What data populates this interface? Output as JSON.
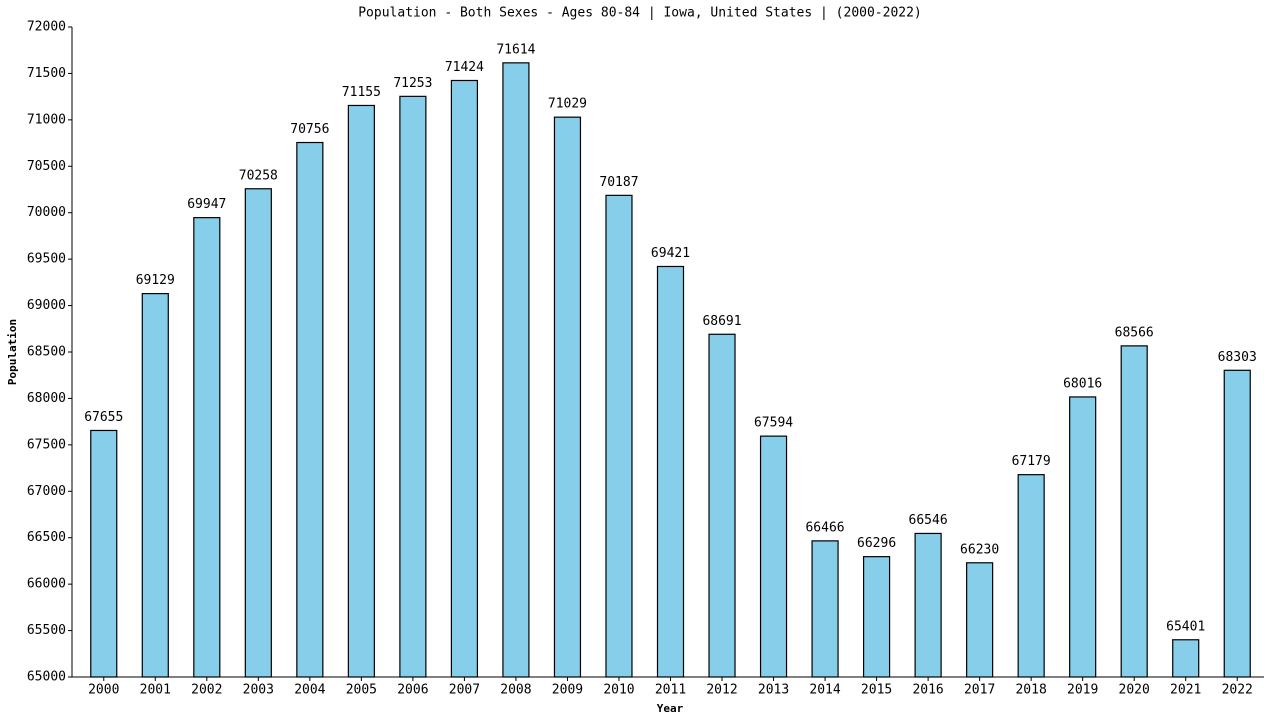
{
  "chart_data": {
    "type": "bar",
    "title": "Population - Both Sexes - Ages 80-84 | Iowa, United States |  (2000-2022)",
    "x_label": "Year",
    "y_label": "Population",
    "categories": [
      "2000",
      "2001",
      "2002",
      "2003",
      "2004",
      "2005",
      "2006",
      "2007",
      "2008",
      "2009",
      "2010",
      "2011",
      "2012",
      "2013",
      "2014",
      "2015",
      "2016",
      "2017",
      "2018",
      "2019",
      "2020",
      "2021",
      "2022"
    ],
    "values": [
      67655,
      69129,
      69947,
      70258,
      70756,
      71155,
      71253,
      71424,
      71614,
      71029,
      70187,
      69421,
      68691,
      67594,
      66466,
      66296,
      66546,
      66230,
      67179,
      68016,
      68566,
      65401,
      68303
    ],
    "color": "#87ceeb",
    "ylim": [
      65000,
      72000
    ],
    "yticks": [
      65000,
      65500,
      66000,
      66500,
      67000,
      67500,
      68000,
      68500,
      69000,
      69500,
      70000,
      70500,
      71000,
      71500,
      72000
    ],
    "grid": false
  }
}
